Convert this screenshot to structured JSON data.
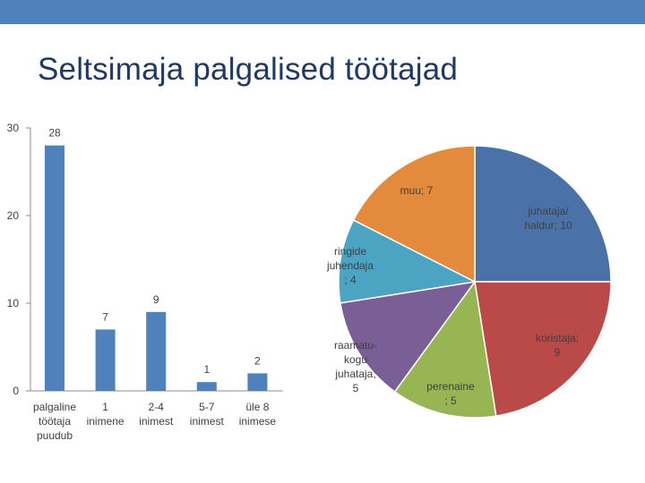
{
  "slide": {
    "title": "Seltsimaja palgalised töötajad",
    "accent_color": "#4f81bd",
    "title_color": "#1f3864"
  },
  "chart_data": [
    {
      "type": "bar",
      "title": "",
      "xlabel": "",
      "ylabel": "",
      "ylim": [
        0,
        30
      ],
      "yticks": [
        0,
        10,
        20,
        30
      ],
      "grid": false,
      "legend": "none",
      "bar_color": "#4f81bd",
      "categories": [
        [
          "palgaline",
          "töötaja",
          "puudub"
        ],
        [
          "1",
          "inimene"
        ],
        [
          "2-4",
          "inimest"
        ],
        [
          "5-7",
          "inimest"
        ],
        [
          "üle 8",
          "inimese"
        ]
      ],
      "values": [
        28,
        7,
        9,
        1,
        2
      ]
    },
    {
      "type": "pie",
      "title": "",
      "legend": "none",
      "slices": [
        {
          "label": [
            "juhataja/",
            "haldur; 10"
          ],
          "value": 10,
          "color": "#4a71a8"
        },
        {
          "label": [
            "koristaja;",
            "9"
          ],
          "value": 9,
          "color": "#b94a48"
        },
        {
          "label": [
            "perenaine",
            "; 5"
          ],
          "value": 5,
          "color": "#97b553"
        },
        {
          "label": [
            "raamatu-",
            "kogu",
            "juhataja;",
            "5"
          ],
          "value": 5,
          "color": "#7a5e96"
        },
        {
          "label": [
            "ringide",
            "juhendaja",
            "; 4"
          ],
          "value": 4,
          "color": "#4aa4c2"
        },
        {
          "label": [
            "muu; 7"
          ],
          "value": 7,
          "color": "#e48a3c"
        }
      ]
    }
  ]
}
